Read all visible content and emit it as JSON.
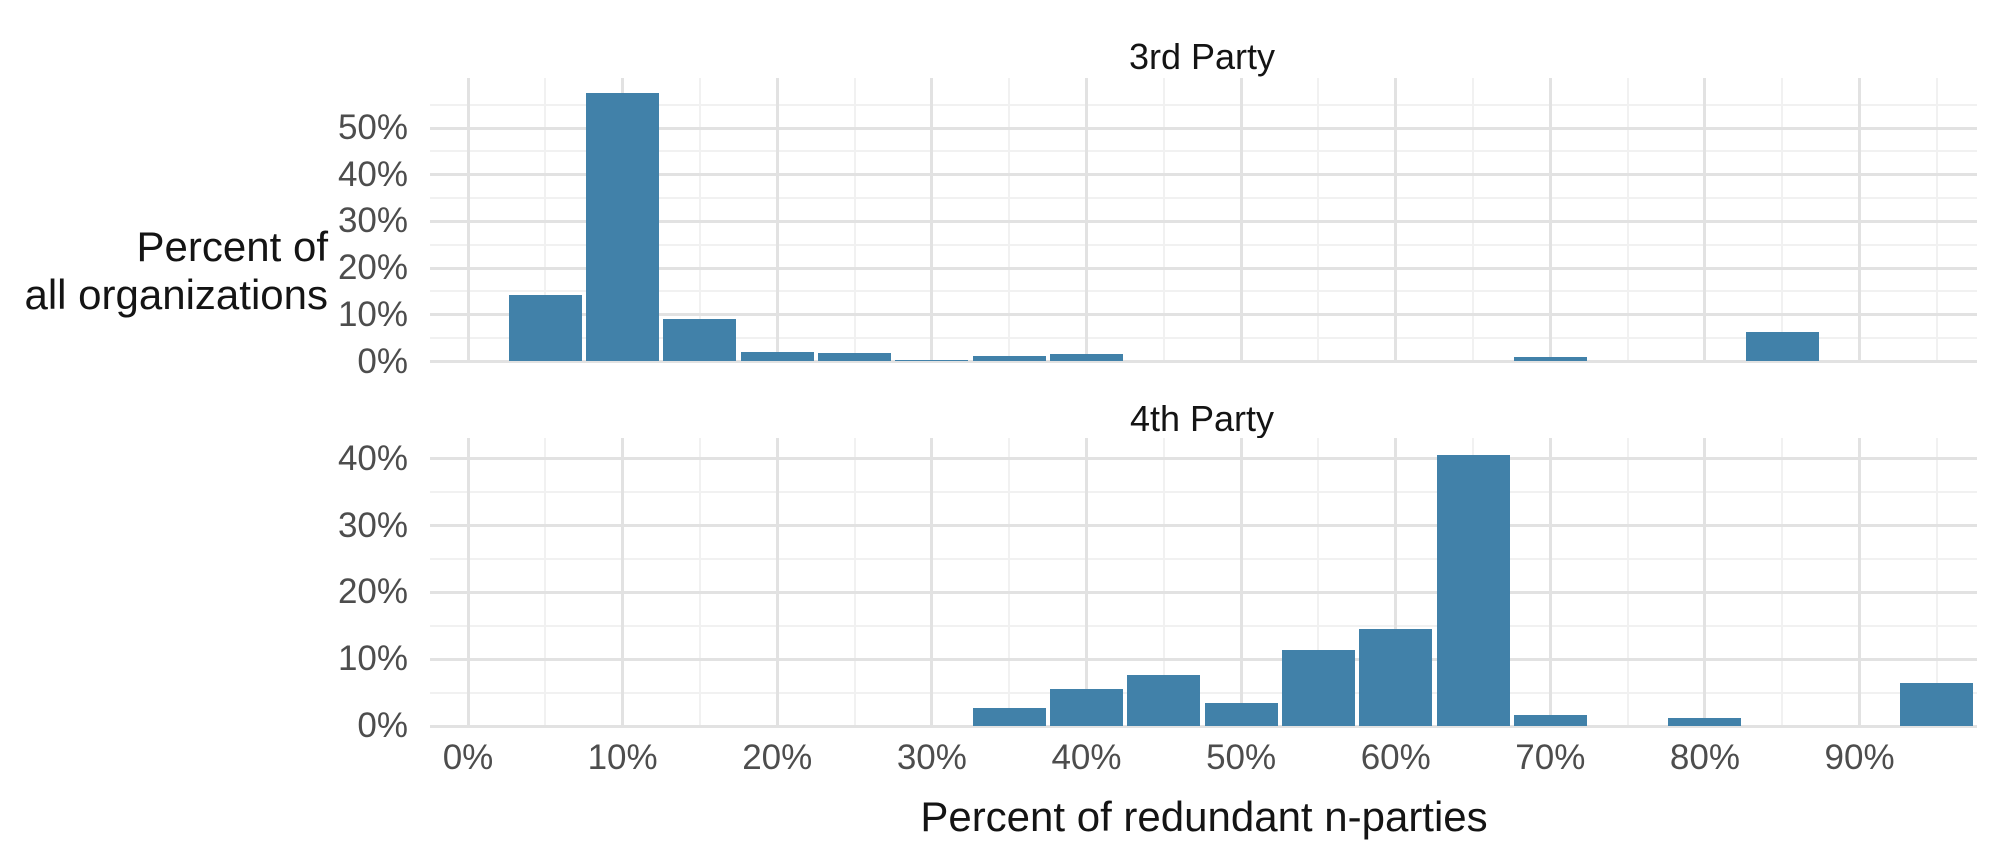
{
  "figure": {
    "background": "#ffffff",
    "bar_color": "#4181a9",
    "grid_major_color": "#e2e2e2",
    "grid_minor_color": "#f1f1f1",
    "tick_label_color": "#4d4d4d",
    "title_color": "#141414"
  },
  "y_axis_title": {
    "line1": "Percent of",
    "line2": "all organizations"
  },
  "x_axis_title": "Percent of redundant n-parties",
  "chart_data": [
    {
      "type": "bar",
      "title": "3rd Party",
      "xlabel": "Percent of redundant n-parties",
      "ylabel": "Percent of all organizations",
      "bin_width_percent": 5,
      "x": [
        5,
        10,
        15,
        20,
        25,
        30,
        35,
        40,
        70,
        85
      ],
      "values": [
        14.3,
        57.5,
        9.0,
        2.1,
        1.8,
        0.4,
        1.2,
        1.6,
        1.0,
        6.3
      ],
      "x_tick_labels": [
        "0%",
        "10%",
        "20%",
        "30%",
        "40%",
        "50%",
        "60%",
        "70%",
        "80%",
        "90%"
      ],
      "x_tick_values": [
        0,
        10,
        20,
        30,
        40,
        50,
        60,
        70,
        80,
        90
      ],
      "y_tick_labels": [
        "0%",
        "10%",
        "20%",
        "30%",
        "40%",
        "50%"
      ],
      "y_tick_values": [
        0,
        10,
        20,
        30,
        40,
        50
      ],
      "y_minor_values": [
        5,
        15,
        25,
        35,
        45,
        55
      ],
      "x_minor_values": [
        5,
        15,
        25,
        35,
        45,
        55,
        65,
        75,
        85,
        95
      ],
      "xlim": [
        -2.5,
        97.6
      ],
      "ylim": [
        0,
        60.7
      ],
      "grid": true,
      "legend": "none"
    },
    {
      "type": "bar",
      "title": "4th Party",
      "xlabel": "Percent of redundant n-parties",
      "ylabel": "Percent of all organizations",
      "bin_width_percent": 5,
      "x": [
        35,
        40,
        45,
        50,
        55,
        60,
        65,
        70,
        80,
        95
      ],
      "values": [
        2.7,
        5.5,
        7.6,
        3.5,
        11.4,
        14.5,
        40.5,
        1.6,
        1.2,
        6.4
      ],
      "x_tick_labels": [
        "0%",
        "10%",
        "20%",
        "30%",
        "40%",
        "50%",
        "60%",
        "70%",
        "80%",
        "90%"
      ],
      "x_tick_values": [
        0,
        10,
        20,
        30,
        40,
        50,
        60,
        70,
        80,
        90
      ],
      "y_tick_labels": [
        "0%",
        "10%",
        "20%",
        "30%",
        "40%"
      ],
      "y_tick_values": [
        0,
        10,
        20,
        30,
        40
      ],
      "y_minor_values": [
        5,
        15,
        25,
        35
      ],
      "x_minor_values": [
        5,
        15,
        25,
        35,
        45,
        55,
        65,
        75,
        85,
        95
      ],
      "xlim": [
        -2.5,
        97.6
      ],
      "ylim": [
        0,
        43.1
      ],
      "grid": true,
      "legend": "none"
    }
  ]
}
